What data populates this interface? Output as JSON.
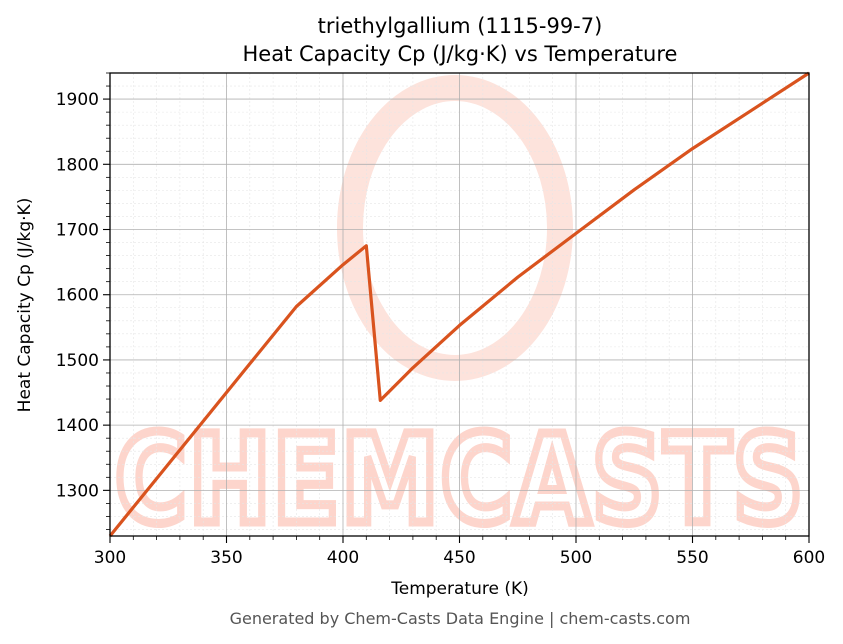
{
  "chart_data": {
    "type": "line",
    "title_line1": "triethylgallium (1115-99-7)",
    "title_line2": "Heat Capacity Cp (J/kg·K) vs Temperature",
    "xlabel": "Temperature (K)",
    "ylabel": "Heat Capacity Cp (J/kg·K)",
    "xlim": [
      300,
      600
    ],
    "ylim": [
      1230,
      1940
    ],
    "xticks": [
      300,
      350,
      400,
      450,
      500,
      550,
      600
    ],
    "yticks": [
      1300,
      1400,
      1500,
      1600,
      1700,
      1800,
      1900
    ],
    "grid": true,
    "line_color": "#d9531e",
    "series": [
      {
        "x": [
          300,
          320,
          340,
          360,
          380,
          400,
          410,
          416,
          430,
          450,
          475,
          500,
          525,
          550,
          575,
          600
        ],
        "y": [
          1230,
          1318,
          1406,
          1494,
          1582,
          1646,
          1675,
          1438,
          1488,
          1553,
          1627,
          1694,
          1761,
          1824,
          1882,
          1940
        ]
      }
    ]
  },
  "watermark": {
    "text": "CHEMCASTS",
    "color": "#fdd5cc"
  },
  "footer": "Generated by Chem-Casts Data Engine | chem-casts.com"
}
